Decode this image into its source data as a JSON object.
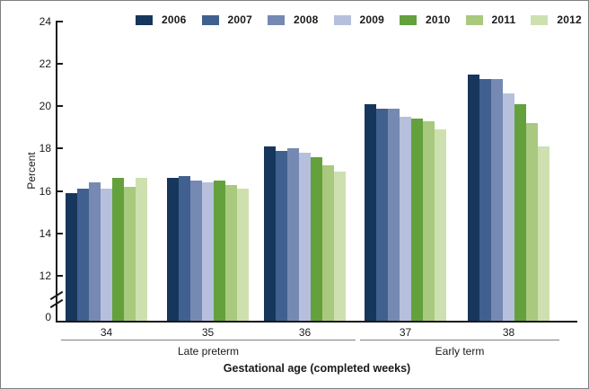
{
  "chart_data": {
    "type": "bar",
    "title": "",
    "ylabel": "Percent",
    "xlabel": "Gestational age (completed weeks)",
    "categories": [
      "34",
      "35",
      "36",
      "37",
      "38"
    ],
    "sections": [
      {
        "label": "Late preterm",
        "group_indexes": [
          0,
          1,
          2
        ]
      },
      {
        "label": "Early term",
        "group_indexes": [
          3,
          4
        ]
      }
    ],
    "series": [
      {
        "name": "2006",
        "color": "#16365C",
        "values": [
          15.9,
          16.6,
          18.1,
          20.1,
          21.5
        ]
      },
      {
        "name": "2007",
        "color": "#40618F",
        "values": [
          16.1,
          16.7,
          17.9,
          19.9,
          21.3
        ]
      },
      {
        "name": "2008",
        "color": "#7589B2",
        "values": [
          16.4,
          16.5,
          18.0,
          19.9,
          21.3
        ]
      },
      {
        "name": "2009",
        "color": "#B6C0DC",
        "values": [
          16.1,
          16.4,
          17.8,
          19.5,
          20.6
        ]
      },
      {
        "name": "2010",
        "color": "#64A03C",
        "values": [
          16.6,
          16.5,
          17.6,
          19.4,
          20.1
        ]
      },
      {
        "name": "2011",
        "color": "#A9C97E",
        "values": [
          16.2,
          16.3,
          17.2,
          19.3,
          19.2
        ]
      },
      {
        "name": "2012",
        "color": "#CEE0AF",
        "values": [
          16.6,
          16.1,
          16.9,
          18.9,
          18.1
        ]
      }
    ],
    "y_ticks_upper": [
      24,
      22,
      20,
      18,
      16,
      14,
      12
    ],
    "y_tick_zero": "0",
    "ylim_display": [
      12,
      24
    ],
    "axis_break": true,
    "grid": false,
    "legend_position": "top"
  }
}
